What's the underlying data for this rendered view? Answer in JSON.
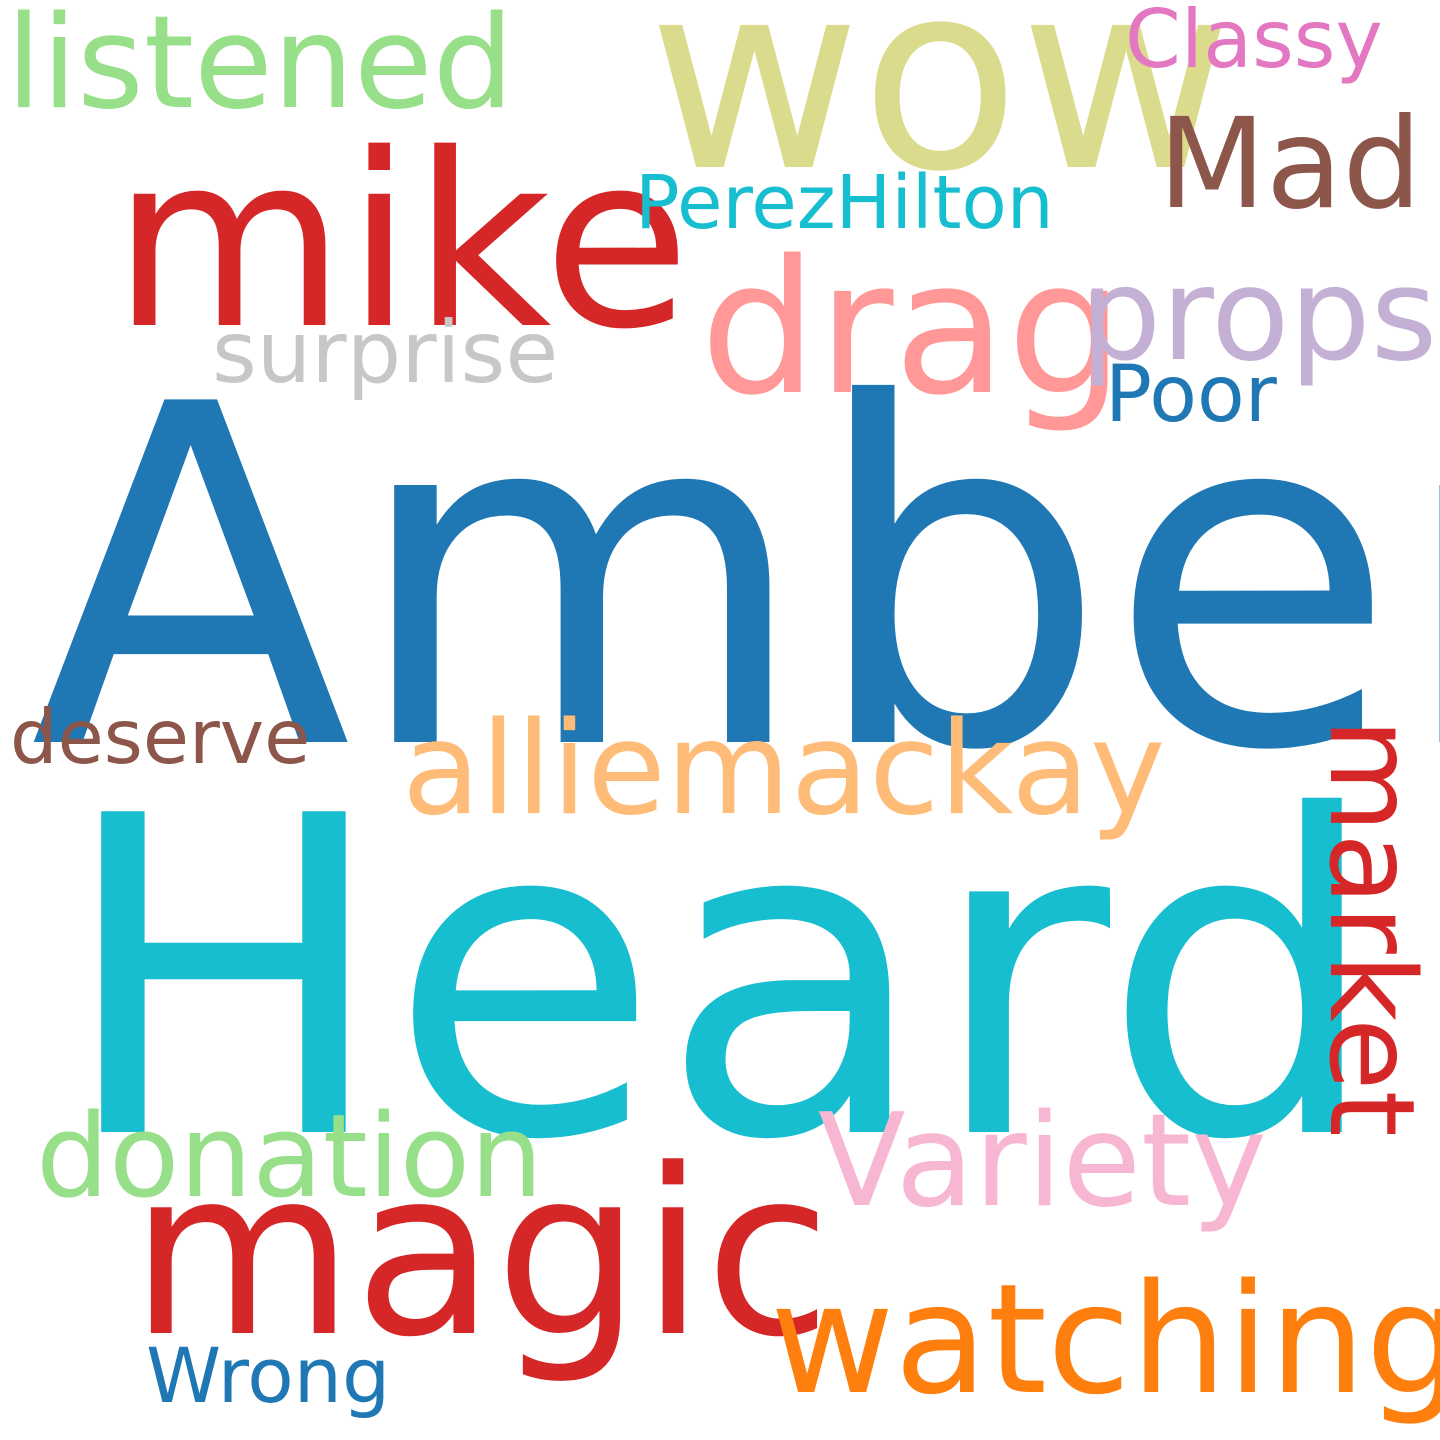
{
  "background_color": "#ffffff",
  "words": [
    {
      "text": "Amber",
      "color": "#1f77b4"
    },
    {
      "text": "Heard",
      "color": "#17becf"
    },
    {
      "text": "wow",
      "color": "#dbdb8d"
    },
    {
      "text": "mike",
      "color": "#d62728"
    },
    {
      "text": "magic",
      "color": "#d62728"
    },
    {
      "text": "drag",
      "color": "#ff9896"
    },
    {
      "text": "watching",
      "color": "#ff7f0e"
    },
    {
      "text": "alliemackay",
      "color": "#ffbb78"
    },
    {
      "text": "listened",
      "color": "#98df8a"
    },
    {
      "text": "Variety",
      "color": "#f7b6d2"
    },
    {
      "text": "market",
      "color": "#d62728"
    },
    {
      "text": "donation",
      "color": "#98df8a"
    },
    {
      "text": "props",
      "color": "#c5b0d5"
    },
    {
      "text": "Mad",
      "color": "#8c564b"
    },
    {
      "text": "PerezHilton",
      "color": "#17becf"
    },
    {
      "text": "surprise",
      "color": "#c7c7c7"
    },
    {
      "text": "Classy",
      "color": "#e377c2"
    },
    {
      "text": "Poor",
      "color": "#1f77b4"
    },
    {
      "text": "deserve",
      "color": "#8c564b"
    },
    {
      "text": "Wrong",
      "color": "#1f77b4"
    }
  ]
}
